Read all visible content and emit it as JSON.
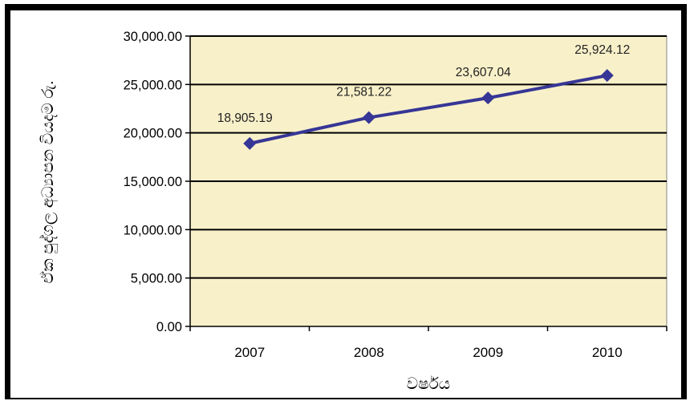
{
  "chart_data": {
    "type": "line",
    "title": "",
    "xlabel": "වර්ෂය",
    "ylabel": "ඒක පුද්ගල අධ්‍යාපන වියදම රු.",
    "categories": [
      "2007",
      "2008",
      "2009",
      "2010"
    ],
    "series": [
      {
        "values": [
          18905.19,
          21581.22,
          23607.04,
          25924.12
        ]
      }
    ],
    "data_labels": [
      "18,905.19",
      "21,581.22",
      "23,607.04",
      "25,924.12"
    ],
    "ylim": [
      0,
      30000
    ],
    "yticks": [
      0,
      5000,
      10000,
      15000,
      20000,
      25000,
      30000
    ],
    "ytick_labels": [
      "0.00",
      "5,000.00",
      "10,000.00",
      "15,000.00",
      "20,000.00",
      "25,000.00",
      "30,000.00"
    ],
    "grid": true,
    "legend": "none",
    "colors": {
      "plot_background": "#f8f0c9",
      "line": "#363696",
      "gridline": "#000000"
    }
  }
}
